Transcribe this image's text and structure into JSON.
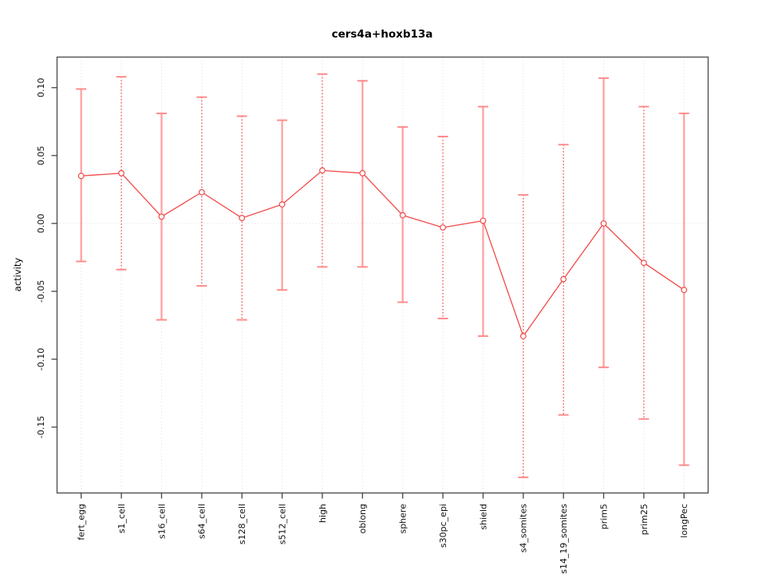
{
  "page": {
    "background": "#ffffff"
  },
  "chart_data": {
    "type": "line",
    "title": "cers4a+hoxb13a",
    "xlabel": "",
    "ylabel": "activity",
    "legend": "none",
    "grid": {
      "vertical": "dotted line at every category",
      "horizontal_at_zero": true
    },
    "categories": [
      "fert_egg",
      "s1_cell",
      "s16_cell",
      "s64_cell",
      "s128_cell",
      "s512_cell",
      "high",
      "oblong",
      "sphere",
      "s30pc_epi",
      "shield",
      "s4_somites",
      "s14_19_somites",
      "prim5",
      "prim25",
      "longPec"
    ],
    "series": [
      {
        "name": "activity",
        "values": [
          0.035,
          0.037,
          0.005,
          0.023,
          0.004,
          0.014,
          0.039,
          0.037,
          0.006,
          -0.003,
          0.002,
          -0.083,
          -0.041,
          0.0,
          -0.029,
          -0.049
        ],
        "error_high": [
          0.099,
          0.108,
          0.081,
          0.093,
          0.079,
          0.076,
          0.11,
          0.105,
          0.071,
          0.064,
          0.086,
          0.021,
          0.058,
          0.107,
          0.086,
          0.081
        ],
        "error_low": [
          -0.028,
          -0.034,
          -0.071,
          -0.046,
          -0.071,
          -0.049,
          -0.032,
          -0.032,
          -0.058,
          -0.07,
          -0.083,
          -0.187,
          -0.141,
          -0.106,
          -0.144,
          -0.178
        ]
      }
    ],
    "bar_line_styles": [
      "solid",
      "dashed",
      "solid",
      "dashed",
      "dashed",
      "solid",
      "dashed",
      "solid",
      "solid",
      "dashed",
      "solid",
      "dashed",
      "dashed",
      "solid",
      "dashed",
      "solid"
    ],
    "yticks": [
      {
        "label": "0.10",
        "value": 0.1
      },
      {
        "label": "0.05",
        "value": 0.05
      },
      {
        "label": "0.00",
        "value": 0.0
      },
      {
        "label": "-0.05",
        "value": -0.05
      },
      {
        "label": "-0.10",
        "value": -0.1
      },
      {
        "label": "-0.15",
        "value": -0.15
      }
    ],
    "ylim": [
      -0.1985,
      0.1225
    ],
    "xlim": [
      0.4,
      16.6
    ],
    "colors": {
      "point": "#f24b4b",
      "line": "#f24b4b",
      "solid_bar": "#ff9e9e",
      "dashed_bar": "#f24b4b",
      "cap": "#ff8c8c",
      "grid": "#dcdcdc",
      "frame": "#5a5a5a",
      "tick": "#444444",
      "text": "#111111",
      "background": "#ffffff"
    }
  }
}
